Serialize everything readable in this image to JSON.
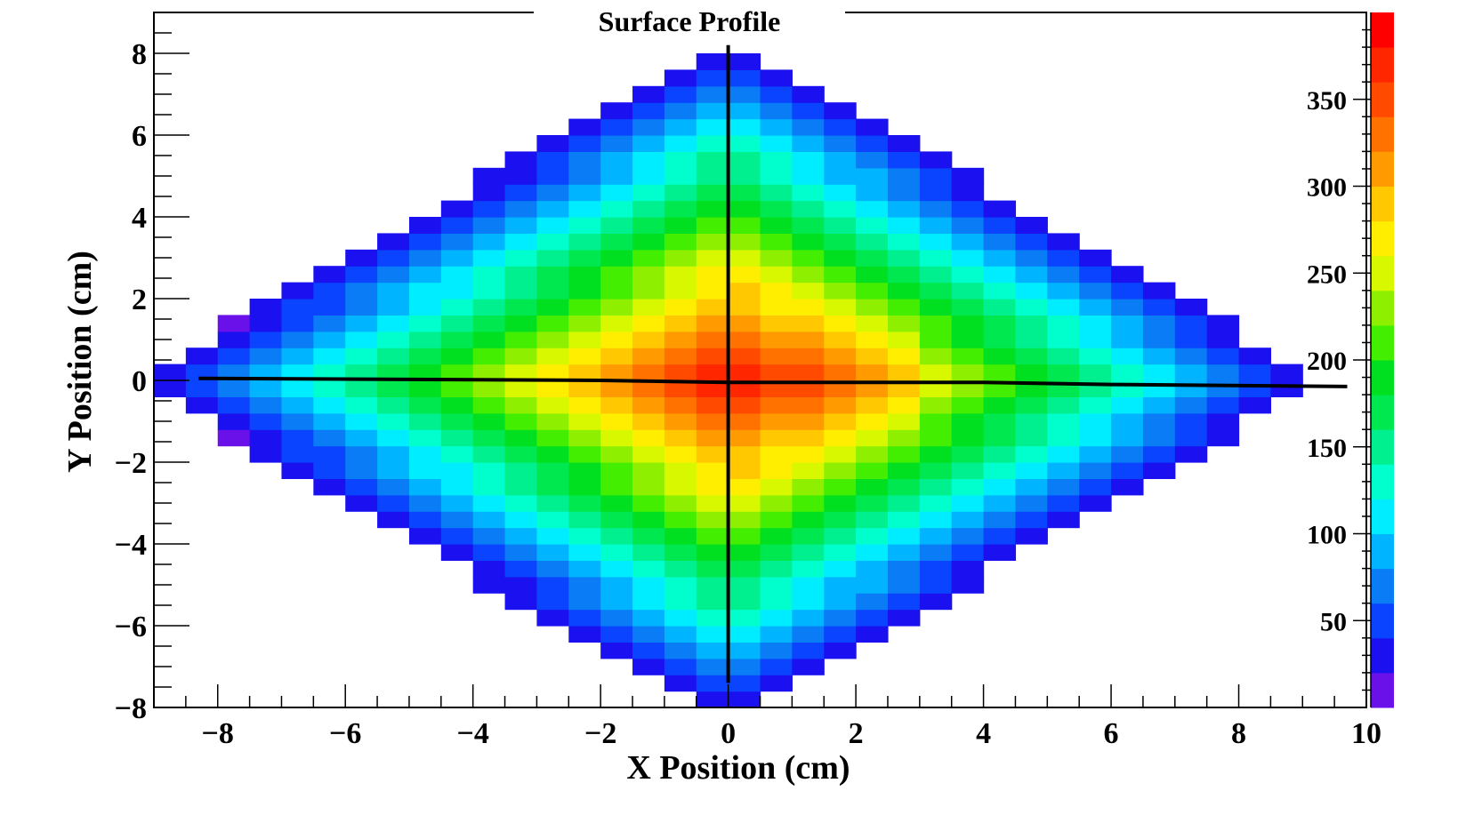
{
  "chart_data": {
    "type": "heatmap",
    "title": "Surface Profile",
    "xlabel": "X Position (cm)",
    "ylabel": "Y Position (cm)",
    "xlim": [
      -9,
      10
    ],
    "ylim": [
      -8,
      9
    ],
    "x_ticks": [
      -8,
      -6,
      -4,
      -2,
      0,
      2,
      4,
      6,
      8,
      10
    ],
    "y_ticks": [
      -8,
      -6,
      -4,
      -2,
      0,
      2,
      4,
      6,
      8
    ],
    "x_tick_labels": [
      "−8",
      "−6",
      "−4",
      "−2",
      "0",
      "2",
      "4",
      "6",
      "8",
      "10"
    ],
    "y_tick_labels": [
      "−8",
      "−6",
      "−4",
      "−2",
      "0",
      "2",
      "4",
      "6",
      "8"
    ],
    "colorbar": {
      "zlim": [
        0,
        400
      ],
      "ticks": [
        50,
        100,
        150,
        200,
        250,
        300,
        350
      ],
      "tick_labels": [
        "50",
        "100",
        "150",
        "200",
        "250",
        "300",
        "350"
      ],
      "palette": [
        "#6a10e8",
        "#1a10f0",
        "#0b44ff",
        "#0a7cf5",
        "#00b4ff",
        "#00ecff",
        "#00ffcc",
        "#00f090",
        "#00e850",
        "#00e020",
        "#44ee00",
        "#8ef000",
        "#d8f800",
        "#ffee00",
        "#ffc800",
        "#ff9a00",
        "#ff7200",
        "#ff4a00",
        "#ff2600",
        "#ff0000"
      ]
    },
    "bins": {
      "x_start": -9,
      "x_step": 0.5,
      "y_start": -8,
      "y_step": 0.4,
      "nx": 38,
      "ny": 42
    },
    "peak_value": 385,
    "peak_location": [
      1.8,
      0
    ],
    "profile_lines": [
      {
        "points": [
          [
            -8.3,
            0.05
          ],
          [
            -2,
            0.0
          ],
          [
            0,
            -0.05
          ],
          [
            4,
            -0.05
          ],
          [
            6,
            -0.1
          ],
          [
            9.7,
            -0.15
          ]
        ]
      },
      {
        "points": [
          [
            0,
            8.2
          ],
          [
            0,
            4.3
          ],
          [
            0,
            0.0
          ],
          [
            0,
            -3.5
          ],
          [
            0,
            -7.4
          ]
        ]
      }
    ]
  }
}
